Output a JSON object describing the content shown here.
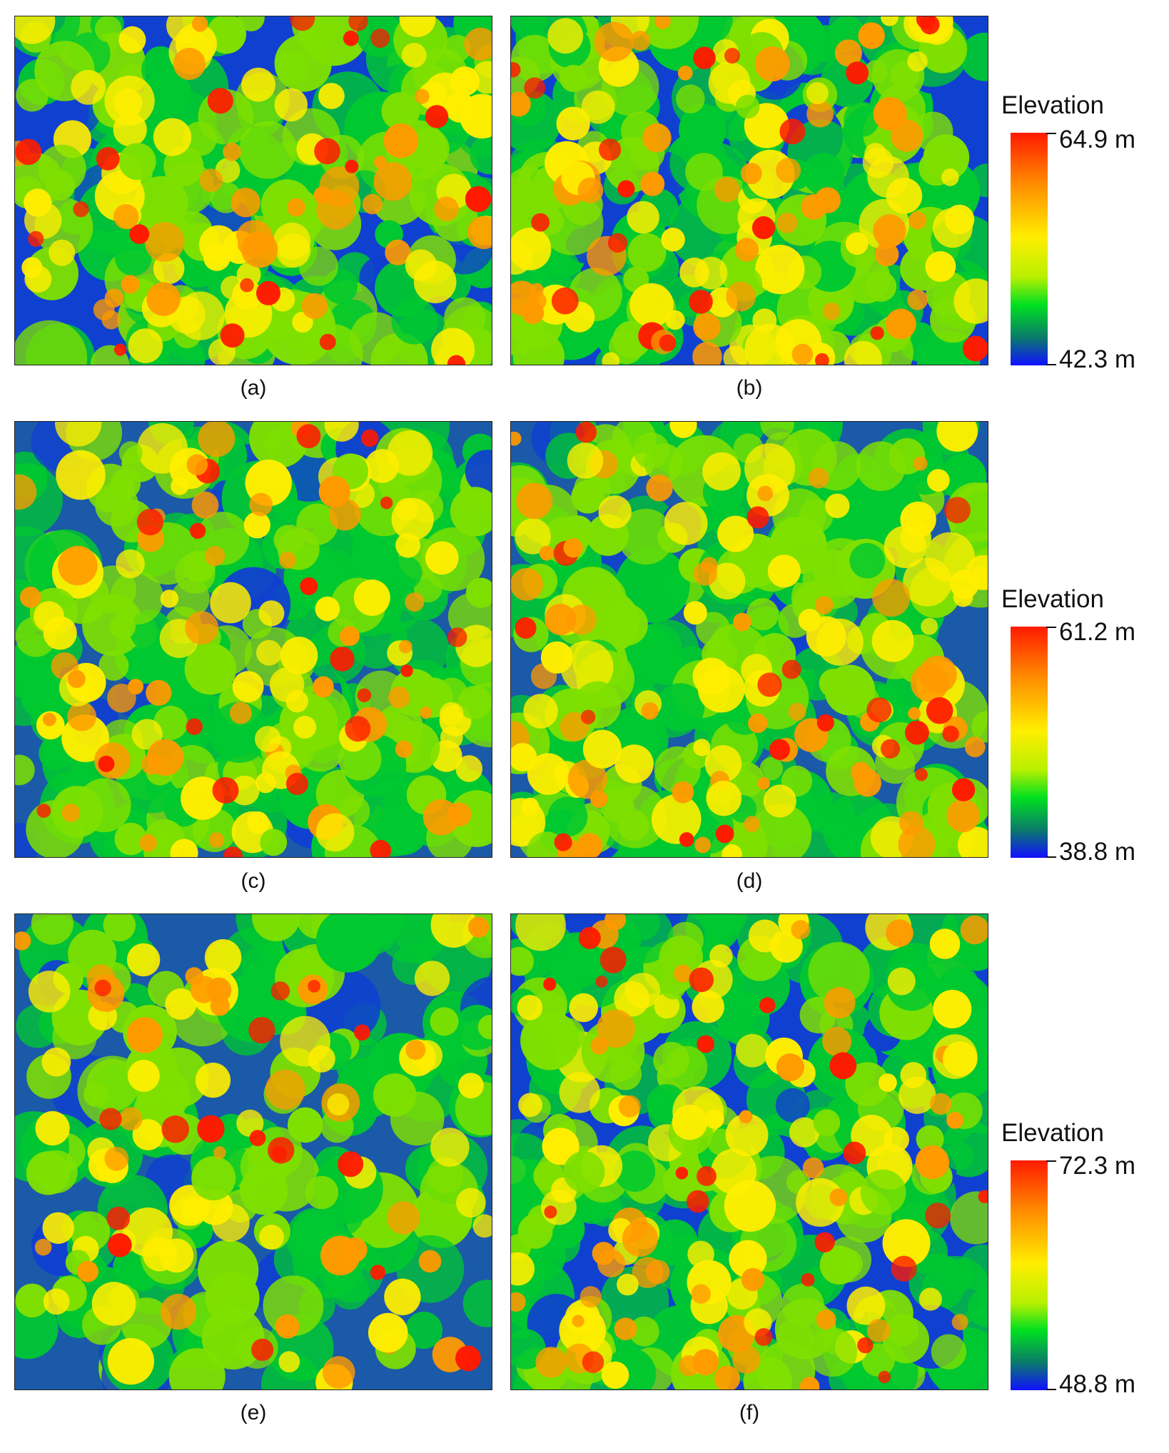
{
  "panels": [
    {
      "id": "a",
      "caption": "(a)"
    },
    {
      "id": "b",
      "caption": "(b)"
    },
    {
      "id": "c",
      "caption": "(c)"
    },
    {
      "id": "d",
      "caption": "(d)"
    },
    {
      "id": "e",
      "caption": "(e)"
    },
    {
      "id": "f",
      "caption": "(f)"
    }
  ],
  "colorbars": [
    {
      "title": "Elevation",
      "max": "64.9 m",
      "min": "42.3 m"
    },
    {
      "title": "Elevation",
      "max": "61.2 m",
      "min": "38.8 m"
    },
    {
      "title": "Elevation",
      "max": "72.3 m",
      "min": "48.8 m"
    }
  ],
  "colors": {
    "high": "#ff1a00",
    "mid_high": "#ff9a00",
    "mid": "#ffee00",
    "mid_low": "#7fe000",
    "low_canopy": "#00c830",
    "ground": "#1040d0"
  }
}
